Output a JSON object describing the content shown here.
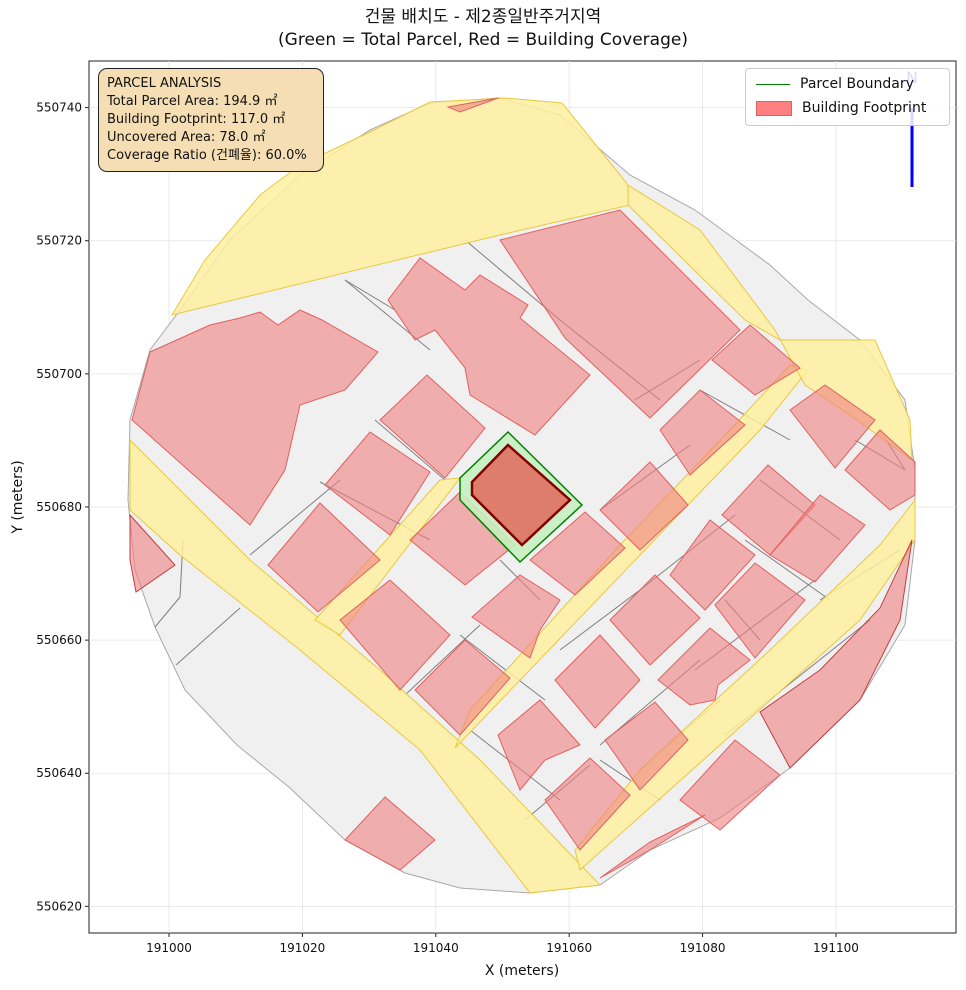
{
  "title": {
    "line1": "건물 배치도 - 제2종일반주거지역",
    "line2": "(Green = Total Parcel, Red = Building Coverage)"
  },
  "axes": {
    "xlabel": "X (meters)",
    "ylabel": "Y (meters)",
    "xlim": [
      190988,
      191118
    ],
    "ylim": [
      550616,
      550747
    ],
    "xticks": [
      "191000",
      "191020",
      "191040",
      "191060",
      "191080",
      "191100"
    ],
    "yticks": [
      "550620",
      "550640",
      "550660",
      "550680",
      "550700",
      "550720",
      "550740"
    ],
    "grid": true
  },
  "info": {
    "heading": "PARCEL ANALYSIS",
    "total_area": "Total Parcel Area: 194.9 ㎡",
    "footprint": "Building Footprint: 117.0 ㎡",
    "uncovered": "Uncovered Area: 78.0 ㎡",
    "ratio": "Coverage Ratio (건폐율): 60.0%"
  },
  "legend": {
    "position": "top-right",
    "items": [
      {
        "label": "Parcel Boundary",
        "kind": "line",
        "color": "#008000"
      },
      {
        "label": "Building Footprint",
        "kind": "patch",
        "color": "#ff8080"
      }
    ]
  },
  "colors": {
    "parcel_fill": "#c8f0c0",
    "parcel_edge": "#008000",
    "building_fill": "#f0a0a0",
    "target_building": "#e07060",
    "road_fill": "#fff0a0",
    "lot_fill": "#f0f0f0",
    "north_arrow": "#0000ff"
  },
  "north_arrow": "north-arrow-icon"
}
